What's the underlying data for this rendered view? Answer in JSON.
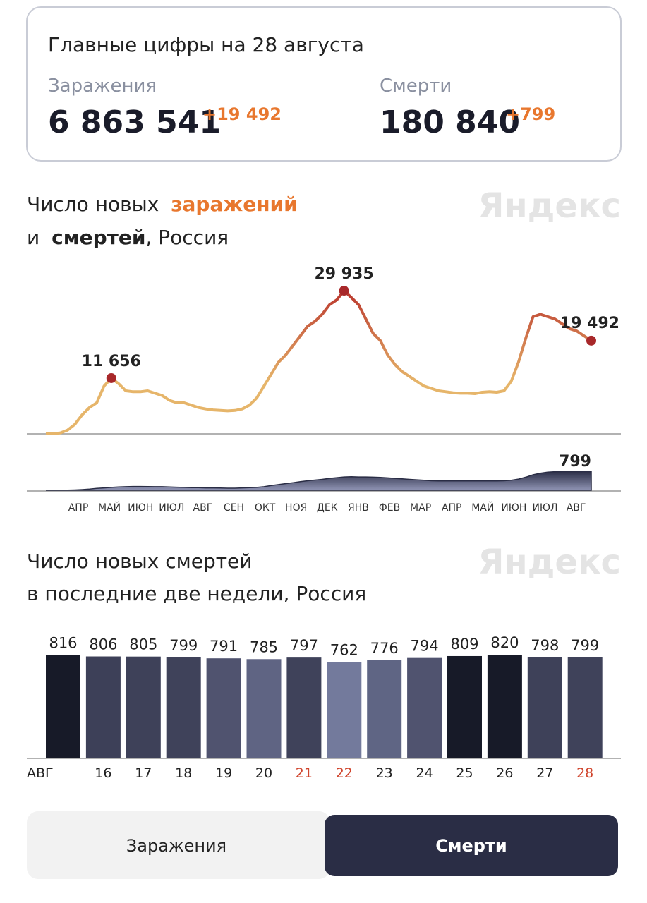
{
  "header": {
    "title": "Главные цифры на 28 августа",
    "stats": [
      {
        "label": "Заражения",
        "value": "6 863 541",
        "delta": "+19 492"
      },
      {
        "label": "Смерти",
        "value": "180 840",
        "delta": "+799"
      }
    ]
  },
  "chart_data": [
    {
      "type": "line",
      "title_parts": [
        "Число новых",
        "заражений",
        "и",
        "смертей",
        ", Россия"
      ],
      "watermark": "Яндекс",
      "month_labels": [
        "АПР",
        "МАЙ",
        "ИЮН",
        "ИЮЛ",
        "АВГ",
        "СЕН",
        "ОКТ",
        "НОЯ",
        "ДЕК",
        "ЯНВ",
        "ФЕВ",
        "МАР",
        "АПР",
        "МАЙ",
        "ИЮН",
        "ИЮЛ",
        "АВГ"
      ],
      "series": [
        {
          "name": "заражений",
          "color": "#e6b56a",
          "peak_color": "#c0392b",
          "values": [
            0,
            50,
            200,
            800,
            2000,
            4000,
            5500,
            6500,
            10000,
            11656,
            10500,
            9000,
            8800,
            8800,
            9000,
            8500,
            8000,
            7000,
            6500,
            6500,
            6000,
            5500,
            5200,
            5000,
            4900,
            4800,
            4900,
            5200,
            6000,
            7500,
            10000,
            12500,
            15000,
            16500,
            18500,
            20500,
            22500,
            23500,
            25000,
            27000,
            28000,
            29935,
            28500,
            27000,
            24000,
            21000,
            19500,
            16500,
            14500,
            13000,
            12000,
            11000,
            10000,
            9500,
            9000,
            8800,
            8600,
            8500,
            8500,
            8400,
            8700,
            8800,
            8700,
            9000,
            11000,
            15000,
            20000,
            24500,
            25000,
            24500,
            24000,
            23000,
            22000,
            21500,
            20500,
            19492
          ],
          "value_labels": [
            null,
            null,
            null,
            null,
            null,
            null,
            null,
            null,
            null,
            "11 656",
            null,
            null,
            null,
            null,
            null,
            null,
            null,
            null,
            null,
            null,
            null,
            null,
            null,
            null,
            null,
            null,
            null,
            null,
            null,
            null,
            null,
            null,
            null,
            null,
            null,
            null,
            null,
            null,
            null,
            null,
            null,
            "29 935",
            null,
            null,
            null,
            null,
            null,
            null,
            null,
            null,
            null,
            null,
            null,
            null,
            null,
            null,
            null,
            null,
            null,
            null,
            null,
            null,
            null,
            null,
            null,
            null,
            null,
            null,
            null,
            null,
            null,
            null,
            null,
            null,
            null,
            "19 492"
          ]
        },
        {
          "name": "смертей",
          "color": "#2a2d45",
          "values": [
            0,
            1,
            2,
            5,
            15,
            30,
            50,
            80,
            100,
            120,
            140,
            150,
            160,
            160,
            155,
            150,
            150,
            140,
            130,
            120,
            110,
            110,
            100,
            100,
            95,
            90,
            90,
            100,
            110,
            120,
            150,
            200,
            240,
            280,
            320,
            360,
            400,
            430,
            460,
            500,
            530,
            560,
            570,
            560,
            560,
            550,
            540,
            520,
            500,
            480,
            460,
            440,
            420,
            400,
            390,
            390,
            390,
            390,
            390,
            390,
            395,
            395,
            390,
            400,
            420,
            470,
            550,
            650,
            720,
            760,
            780,
            790,
            790,
            795,
            795,
            799
          ],
          "value_labels": [
            null,
            null,
            null,
            null,
            null,
            null,
            null,
            null,
            null,
            null,
            null,
            null,
            null,
            null,
            null,
            null,
            null,
            null,
            null,
            null,
            null,
            null,
            null,
            null,
            null,
            null,
            null,
            null,
            null,
            null,
            null,
            null,
            null,
            null,
            null,
            null,
            null,
            null,
            null,
            null,
            null,
            null,
            null,
            null,
            null,
            null,
            null,
            null,
            null,
            null,
            null,
            null,
            null,
            null,
            null,
            null,
            null,
            null,
            null,
            null,
            null,
            null,
            null,
            null,
            null,
            null,
            null,
            null,
            null,
            null,
            null,
            null,
            null,
            null,
            null,
            "799"
          ]
        }
      ]
    },
    {
      "type": "bar",
      "title_lines": [
        "Число новых смертей",
        "в последние две недели, Россия"
      ],
      "watermark": "Яндекс",
      "categories": [
        "АВГ",
        "16",
        "17",
        "18",
        "19",
        "20",
        "21",
        "22",
        "23",
        "24",
        "25",
        "26",
        "27",
        "28"
      ],
      "label_colors": [
        "#222",
        "#222",
        "#222",
        "#222",
        "#222",
        "#222",
        "#d0442c",
        "#d0442c",
        "#222",
        "#222",
        "#222",
        "#222",
        "#222",
        "#d0442c"
      ],
      "values": [
        816,
        806,
        805,
        799,
        791,
        785,
        797,
        762,
        776,
        794,
        809,
        820,
        798,
        799
      ],
      "colors": [
        "#171a28",
        "#3d4058",
        "#3e4159",
        "#3f425a",
        "#50536f",
        "#5f6483",
        "#3f425a",
        "#737a9c",
        "#5f6584",
        "#50536f",
        "#171a28",
        "#171a28",
        "#3e4159",
        "#3f425a"
      ]
    }
  ],
  "tabs": [
    "Заражения",
    "Смерти"
  ]
}
